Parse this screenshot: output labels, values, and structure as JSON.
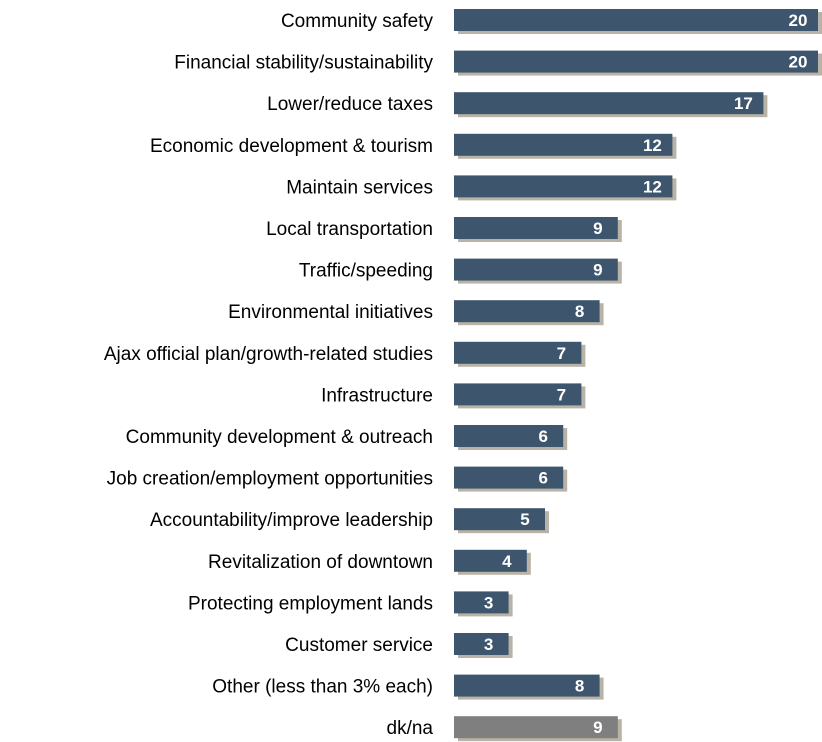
{
  "chart_data": {
    "type": "bar",
    "orientation": "horizontal",
    "categories": [
      "Community safety",
      "Financial stability/sustainability",
      "Lower/reduce taxes",
      "Economic development & tourism",
      "Maintain services",
      "Local transportation",
      "Traffic/speeding",
      "Environmental initiatives",
      "Ajax official plan/growth-related studies",
      "Infrastructure",
      "Community development & outreach",
      "Job creation/employment opportunities",
      "Accountability/improve leadership",
      "Revitalization of downtown",
      "Protecting employment lands",
      "Customer service",
      "Other (less than 3% each)",
      "dk/na"
    ],
    "values": [
      20,
      20,
      17,
      12,
      12,
      9,
      9,
      8,
      7,
      7,
      6,
      6,
      5,
      4,
      3,
      3,
      8,
      9
    ],
    "title": "",
    "xlabel": "",
    "ylabel": "",
    "xlim": [
      0,
      20
    ],
    "grid": false,
    "legend": "none",
    "colors": {
      "bar": "#3d566e",
      "bar_dknA": "#7f7f7f",
      "shadow": "#b8b3a6",
      "label_text": "#000000",
      "value_text": "#ffffff"
    }
  }
}
